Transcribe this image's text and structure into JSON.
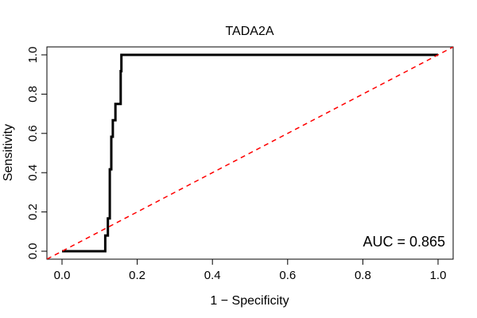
{
  "chart_data": {
    "type": "line",
    "title": "TADA2A",
    "xlabel": "1 − Specificity",
    "ylabel": "Sensitivity",
    "xlim": [
      0.0,
      1.0
    ],
    "ylim": [
      0.0,
      1.0
    ],
    "xticks": [
      "0.0",
      "0.2",
      "0.4",
      "0.6",
      "0.8",
      "1.0"
    ],
    "yticks": [
      "0.0",
      "0.2",
      "0.4",
      "0.6",
      "0.8",
      "1.0"
    ],
    "grid": false,
    "annotation": "AUC = 0.865",
    "series": [
      {
        "role": "roc-curve",
        "color": "#000000",
        "style": "solid",
        "x": [
          0.0,
          0.115,
          0.115,
          0.122,
          0.122,
          0.127,
          0.127,
          0.131,
          0.131,
          0.135,
          0.135,
          0.142,
          0.142,
          0.156,
          0.156,
          0.158,
          0.158,
          1.0
        ],
        "y": [
          0.0,
          0.0,
          0.08,
          0.08,
          0.167,
          0.167,
          0.417,
          0.417,
          0.583,
          0.583,
          0.667,
          0.667,
          0.75,
          0.75,
          0.917,
          0.917,
          1.0,
          1.0
        ]
      },
      {
        "role": "reference-diagonal",
        "color": "#ff0000",
        "style": "dashed",
        "x": [
          -0.04,
          1.04
        ],
        "y": [
          -0.04,
          1.04
        ]
      }
    ]
  }
}
